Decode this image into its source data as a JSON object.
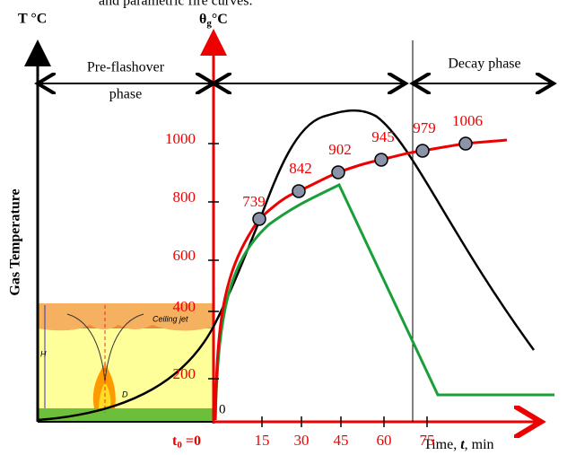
{
  "header": {
    "caption": "and parametric fire curves."
  },
  "axes": {
    "left_label": "T °C",
    "right_label": {
      "main": "θ",
      "sub": "g",
      "unit": "°C"
    },
    "vertical_title": "Gas Temperature",
    "x_title": {
      "before": "Time, ",
      "italic": "t",
      "after": ", min"
    },
    "origin": "0",
    "t0": {
      "main": "t",
      "sub": "0",
      "rest": " =0"
    },
    "y_ticks": [
      "200",
      "400",
      "600",
      "800",
      "1000"
    ],
    "x_ticks": [
      "15",
      "30",
      "45",
      "60",
      "75"
    ]
  },
  "phases": {
    "pre_line1": "Pre-flashover",
    "pre_line2": "phase",
    "decay": "Decay phase"
  },
  "points": [
    "739",
    "842",
    "902",
    "945",
    "979",
    "1006"
  ],
  "inset": {
    "ceiling_jet": "Ceiling jet",
    "h": "H",
    "d": "D"
  }
}
